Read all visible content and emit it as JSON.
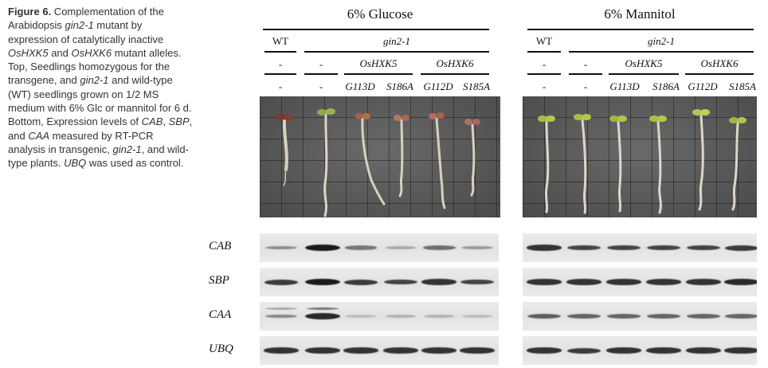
{
  "caption": {
    "figure_label": "Figure 6.",
    "text_1": " Complementation of the Arabidopsis ",
    "gene_1": "gin2-1",
    "text_2": " mutant by expression of catalytically inactive ",
    "gene_2": "OsHXK5",
    "text_3": " and ",
    "gene_3": "OsHXK6",
    "text_4": " mutant alleles. Top, Seedlings homozygous for the transgene, and ",
    "gene_4": "gin2-1",
    "text_5": " and wild-type (WT) seedlings grown on 1/2 MS medium with 6% Glc or mannitol for 6 d. Bottom, Expression levels of ",
    "gene_5": "CAB",
    "text_6": ", ",
    "gene_6": "SBP",
    "text_7": ", and ",
    "gene_7": "CAA",
    "text_8": " measured by RT-PCR analysis in transgenic, ",
    "gene_8": "gin2-1",
    "text_9": ", and wild-type plants. ",
    "gene_9": "UBQ",
    "text_10": " was used as control."
  },
  "panels": [
    {
      "title": "6% Glucose",
      "wt_label": "WT",
      "mutant_label": "gin2-1",
      "group_1": "OsHXK5",
      "group_2": "OsHXK6",
      "row2": [
        "-",
        "-"
      ],
      "row3": [
        "-",
        "-",
        "G113D",
        "S186A",
        "G112D",
        "S185A"
      ]
    },
    {
      "title": "6% Mannitol",
      "wt_label": "WT",
      "mutant_label": "gin2-1",
      "group_1": "OsHXK5",
      "group_2": "OsHXK6",
      "row2": [
        "-",
        "-"
      ],
      "row3": [
        "-",
        "-",
        "G113D",
        "S186A",
        "G112D",
        "S185A"
      ]
    }
  ],
  "genes": [
    "CAB",
    "SBP",
    "CAA",
    "UBQ"
  ],
  "band_intensity": {
    "glucose": {
      "CAB": [
        0.3,
        1.0,
        0.45,
        0.15,
        0.5,
        0.25
      ],
      "SBP": [
        0.8,
        1.0,
        0.8,
        0.75,
        0.85,
        0.75
      ],
      "CAA": [
        0.35,
        0.9,
        0.05,
        0.1,
        0.1,
        0.05
      ],
      "UBQ": [
        0.85,
        0.85,
        0.85,
        0.85,
        0.85,
        0.85
      ]
    },
    "mannitol": {
      "CAB": [
        0.85,
        0.75,
        0.75,
        0.75,
        0.75,
        0.8
      ],
      "SBP": [
        0.85,
        0.85,
        0.85,
        0.85,
        0.85,
        0.9
      ],
      "CAA": [
        0.6,
        0.55,
        0.55,
        0.55,
        0.55,
        0.55
      ],
      "UBQ": [
        0.85,
        0.8,
        0.85,
        0.85,
        0.85,
        0.85
      ]
    }
  }
}
